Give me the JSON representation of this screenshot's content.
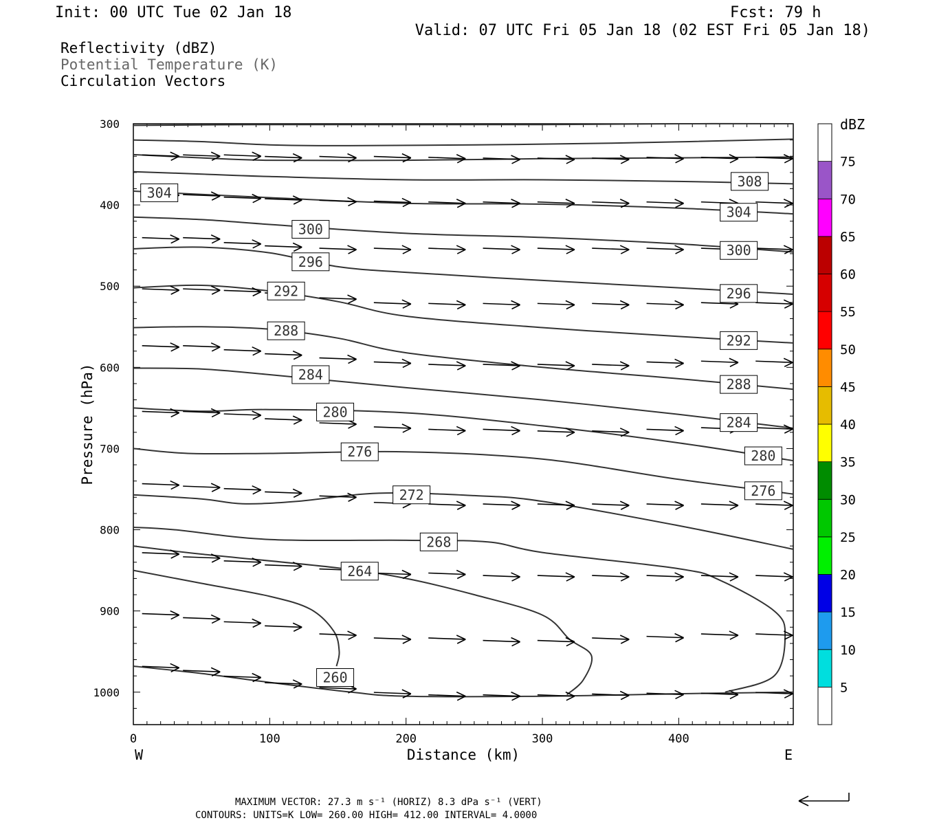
{
  "header": {
    "init": "Init: 00 UTC Tue 02 Jan 18",
    "fcst": "Fcst:   79 h",
    "valid": "Valid: 07 UTC Fri 05 Jan 18 (02 EST Fri 05 Jan 18)"
  },
  "legend": {
    "lines": [
      {
        "text": "Reflectivity (dBZ)",
        "color": "#000000"
      },
      {
        "text": "Potential Temperature (K)",
        "color": "#666666"
      },
      {
        "text": "Circulation Vectors",
        "color": "#000000"
      }
    ]
  },
  "footer": {
    "max_vector": "MAXIMUM VECTOR:  27.3 m s⁻¹ (HORIZ)        8.3 dPa s⁻¹ (VERT)",
    "contours": "CONTOURS:  UNITS=K  LOW=  260.00      HIGH=  412.00      INTERVAL=    4.0000"
  },
  "chart_data": {
    "type": "cross-section contour",
    "xlabel": "Distance (km)",
    "ylabel": "Pressure (hPa)",
    "xlim": [
      0,
      484
    ],
    "ylim": [
      1040,
      300
    ],
    "x_ticks": [
      0,
      100,
      200,
      300,
      400
    ],
    "y_ticks": [
      300,
      400,
      500,
      600,
      700,
      800,
      900,
      1000
    ],
    "x_end_labels": {
      "left": "W",
      "right": "E"
    },
    "contour_lines": [
      {
        "label": "",
        "pts": [
          [
            0,
            302
          ],
          [
            100,
            301
          ],
          [
            200,
            301
          ],
          [
            300,
            301
          ],
          [
            400,
            300
          ],
          [
            484,
            300
          ]
        ]
      },
      {
        "label": "",
        "pts": [
          [
            0,
            320
          ],
          [
            50,
            322
          ],
          [
            100,
            326
          ],
          [
            150,
            327
          ],
          [
            250,
            326
          ],
          [
            350,
            324
          ],
          [
            484,
            319
          ]
        ]
      },
      {
        "label": "",
        "pts": [
          [
            0,
            338
          ],
          [
            50,
            342
          ],
          [
            100,
            345
          ],
          [
            200,
            345
          ],
          [
            300,
            343
          ],
          [
            400,
            342
          ],
          [
            484,
            341
          ]
        ]
      },
      {
        "label": "308",
        "pts": [
          [
            0,
            359
          ],
          [
            50,
            362
          ],
          [
            100,
            365
          ],
          [
            200,
            369
          ],
          [
            300,
            369
          ],
          [
            400,
            371
          ],
          [
            484,
            374
          ]
        ]
      },
      {
        "label": "304",
        "pts": [
          [
            0,
            383
          ],
          [
            100,
            391
          ],
          [
            200,
            398
          ],
          [
            300,
            399
          ],
          [
            400,
            404
          ],
          [
            484,
            411
          ]
        ]
      },
      {
        "label": "300",
        "pts": [
          [
            0,
            415
          ],
          [
            50,
            418
          ],
          [
            100,
            424
          ],
          [
            200,
            435
          ],
          [
            300,
            440
          ],
          [
            400,
            448
          ],
          [
            484,
            458
          ]
        ]
      },
      {
        "label": "296",
        "pts": [
          [
            0,
            454
          ],
          [
            50,
            452
          ],
          [
            100,
            459
          ],
          [
            150,
            476
          ],
          [
            200,
            483
          ],
          [
            300,
            493
          ],
          [
            400,
            502
          ],
          [
            484,
            510
          ]
        ]
      },
      {
        "label": "292",
        "pts": [
          [
            0,
            502
          ],
          [
            50,
            499
          ],
          [
            100,
            506
          ],
          [
            150,
            519
          ],
          [
            200,
            537
          ],
          [
            300,
            551
          ],
          [
            400,
            562
          ],
          [
            484,
            570
          ]
        ]
      },
      {
        "label": "288",
        "pts": [
          [
            0,
            551
          ],
          [
            50,
            550
          ],
          [
            100,
            553
          ],
          [
            150,
            564
          ],
          [
            200,
            582
          ],
          [
            300,
            600
          ],
          [
            400,
            614
          ],
          [
            484,
            627
          ]
        ]
      },
      {
        "label": "284",
        "pts": [
          [
            0,
            601
          ],
          [
            50,
            602
          ],
          [
            100,
            609
          ],
          [
            200,
            625
          ],
          [
            300,
            640
          ],
          [
            400,
            658
          ],
          [
            484,
            675
          ]
        ]
      },
      {
        "label": "280",
        "pts": [
          [
            0,
            650
          ],
          [
            50,
            654
          ],
          [
            100,
            652
          ],
          [
            200,
            656
          ],
          [
            300,
            672
          ],
          [
            400,
            693
          ],
          [
            484,
            715
          ]
        ]
      },
      {
        "label": "276",
        "pts": [
          [
            0,
            700
          ],
          [
            40,
            706
          ],
          [
            100,
            706
          ],
          [
            200,
            704
          ],
          [
            300,
            713
          ],
          [
            400,
            738
          ],
          [
            484,
            756
          ]
        ]
      },
      {
        "label": "272",
        "pts": [
          [
            0,
            757
          ],
          [
            50,
            762
          ],
          [
            80,
            768
          ],
          [
            120,
            765
          ],
          [
            180,
            755
          ],
          [
            250,
            758
          ],
          [
            300,
            765
          ],
          [
            400,
            795
          ],
          [
            484,
            824
          ]
        ]
      },
      {
        "label": "268",
        "pts": [
          [
            0,
            797
          ],
          [
            30,
            800
          ],
          [
            100,
            812
          ],
          [
            200,
            813
          ],
          [
            260,
            815
          ],
          [
            300,
            828
          ],
          [
            400,
            848
          ],
          [
            430,
            862
          ],
          [
            470,
            900
          ],
          [
            478,
            930
          ],
          [
            470,
            980
          ],
          [
            434,
            1000
          ]
        ]
      },
      {
        "label": "264",
        "pts": [
          [
            0,
            820
          ],
          [
            50,
            830
          ],
          [
            150,
            847
          ],
          [
            200,
            860
          ],
          [
            250,
            880
          ],
          [
            300,
            905
          ],
          [
            320,
            935
          ],
          [
            336,
            955
          ],
          [
            330,
            985
          ],
          [
            318,
            1003
          ]
        ]
      },
      {
        "label": "260",
        "pts": [
          [
            0,
            850
          ],
          [
            50,
            866
          ],
          [
            100,
            882
          ],
          [
            130,
            898
          ],
          [
            147,
            925
          ],
          [
            151,
            950
          ],
          [
            149,
            968
          ]
        ]
      },
      {
        "label": "",
        "pts": [
          [
            0,
            968
          ],
          [
            50,
            977
          ],
          [
            100,
            988
          ],
          [
            160,
            1000
          ],
          [
            200,
            1005
          ],
          [
            300,
            1005
          ],
          [
            400,
            1002
          ],
          [
            484,
            1000
          ]
        ]
      }
    ],
    "vectors": [
      [
        20,
        340
      ],
      [
        50,
        340
      ],
      [
        80,
        340
      ],
      [
        110,
        342
      ],
      [
        150,
        342
      ],
      [
        190,
        342
      ],
      [
        230,
        343
      ],
      [
        270,
        344
      ],
      [
        310,
        344
      ],
      [
        350,
        344
      ],
      [
        390,
        343
      ],
      [
        430,
        343
      ],
      [
        470,
        343
      ],
      [
        20,
        388
      ],
      [
        50,
        389
      ],
      [
        80,
        392
      ],
      [
        110,
        394
      ],
      [
        150,
        396
      ],
      [
        190,
        397
      ],
      [
        230,
        398
      ],
      [
        270,
        398
      ],
      [
        310,
        398
      ],
      [
        350,
        398
      ],
      [
        390,
        398
      ],
      [
        430,
        398
      ],
      [
        470,
        398
      ],
      [
        20,
        442
      ],
      [
        50,
        442
      ],
      [
        80,
        448
      ],
      [
        110,
        452
      ],
      [
        150,
        455
      ],
      [
        190,
        455
      ],
      [
        230,
        455
      ],
      [
        270,
        455
      ],
      [
        310,
        455
      ],
      [
        350,
        455
      ],
      [
        390,
        455
      ],
      [
        430,
        455
      ],
      [
        470,
        455
      ],
      [
        20,
        505
      ],
      [
        50,
        505
      ],
      [
        80,
        507
      ],
      [
        110,
        510
      ],
      [
        150,
        516
      ],
      [
        190,
        522
      ],
      [
        230,
        523
      ],
      [
        270,
        523
      ],
      [
        310,
        523
      ],
      [
        350,
        523
      ],
      [
        390,
        523
      ],
      [
        430,
        522
      ],
      [
        470,
        522
      ],
      [
        20,
        575
      ],
      [
        50,
        575
      ],
      [
        80,
        580
      ],
      [
        110,
        585
      ],
      [
        150,
        590
      ],
      [
        190,
        595
      ],
      [
        230,
        598
      ],
      [
        270,
        598
      ],
      [
        310,
        598
      ],
      [
        350,
        598
      ],
      [
        390,
        595
      ],
      [
        430,
        594
      ],
      [
        470,
        594
      ],
      [
        20,
        656
      ],
      [
        50,
        656
      ],
      [
        80,
        659
      ],
      [
        110,
        665
      ],
      [
        150,
        670
      ],
      [
        190,
        675
      ],
      [
        230,
        678
      ],
      [
        270,
        678
      ],
      [
        310,
        680
      ],
      [
        350,
        680
      ],
      [
        390,
        678
      ],
      [
        430,
        676
      ],
      [
        470,
        676
      ],
      [
        20,
        745
      ],
      [
        50,
        748
      ],
      [
        80,
        751
      ],
      [
        110,
        755
      ],
      [
        150,
        760
      ],
      [
        190,
        768
      ],
      [
        230,
        770
      ],
      [
        270,
        770
      ],
      [
        310,
        770
      ],
      [
        350,
        770
      ],
      [
        390,
        770
      ],
      [
        430,
        770
      ],
      [
        470,
        770
      ],
      [
        20,
        830
      ],
      [
        50,
        835
      ],
      [
        80,
        840
      ],
      [
        110,
        845
      ],
      [
        150,
        850
      ],
      [
        190,
        855
      ],
      [
        230,
        855
      ],
      [
        270,
        858
      ],
      [
        310,
        858
      ],
      [
        350,
        858
      ],
      [
        390,
        858
      ],
      [
        430,
        858
      ],
      [
        470,
        858
      ],
      [
        20,
        905
      ],
      [
        50,
        910
      ],
      [
        80,
        915
      ],
      [
        110,
        920
      ],
      [
        150,
        930
      ],
      [
        190,
        935
      ],
      [
        230,
        935
      ],
      [
        270,
        938
      ],
      [
        310,
        938
      ],
      [
        350,
        935
      ],
      [
        390,
        933
      ],
      [
        430,
        930
      ],
      [
        470,
        930
      ],
      [
        20,
        970
      ],
      [
        50,
        975
      ],
      [
        80,
        982
      ],
      [
        110,
        990
      ],
      [
        150,
        996
      ],
      [
        190,
        1002
      ],
      [
        230,
        1005
      ],
      [
        270,
        1005
      ],
      [
        310,
        1005
      ],
      [
        350,
        1004
      ],
      [
        390,
        1003
      ],
      [
        430,
        1003
      ],
      [
        470,
        1002
      ]
    ]
  },
  "colorbar": {
    "title": "dBZ",
    "levels": [
      {
        "label": "5",
        "color": "#00dede"
      },
      {
        "label": "10",
        "color": "#1e9bee"
      },
      {
        "label": "15",
        "color": "#0000e6"
      },
      {
        "label": "20",
        "color": "#00f000"
      },
      {
        "label": "25",
        "color": "#00c800"
      },
      {
        "label": "30",
        "color": "#008c00"
      },
      {
        "label": "35",
        "color": "#ffff00"
      },
      {
        "label": "40",
        "color": "#e6bc00"
      },
      {
        "label": "45",
        "color": "#ff8c00"
      },
      {
        "label": "50",
        "color": "#ff0000"
      },
      {
        "label": "55",
        "color": "#d60000"
      },
      {
        "label": "60",
        "color": "#bb0000"
      },
      {
        "label": "65",
        "color": "#ff00ff"
      },
      {
        "label": "70",
        "color": "#9a55c8"
      },
      {
        "label": "75",
        "color": "#ffffff"
      }
    ]
  }
}
